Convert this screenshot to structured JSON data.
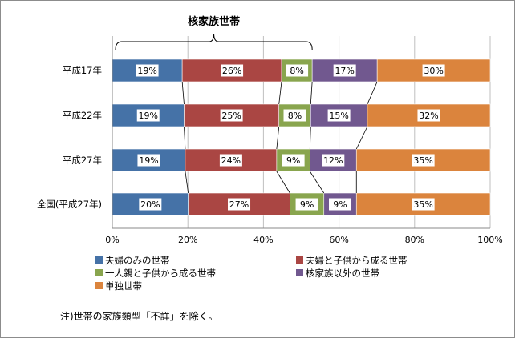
{
  "chart_data": {
    "type": "bar",
    "orientation": "horizontal",
    "stacked": true,
    "percent_stacked": true,
    "categories": [
      "平成17年",
      "平成22年",
      "平成27年",
      "全国(平成27年)"
    ],
    "series": [
      {
        "name": "夫婦のみの世帯",
        "color": "#4572a7",
        "values": [
          18.5,
          19.0,
          19.3,
          20.1
        ],
        "labels": [
          "19%",
          "19%",
          "19%",
          "20%"
        ]
      },
      {
        "name": "夫婦と子供から成る世帯",
        "color": "#aa4643",
        "values": [
          26.3,
          25.1,
          24.2,
          26.9
        ],
        "labels": [
          "26%",
          "25%",
          "24%",
          "27%"
        ]
      },
      {
        "name": "一人親と子供から成る世帯",
        "color": "#89a54e",
        "values": [
          8.1,
          8.4,
          8.8,
          9.0
        ],
        "labels": [
          "8%",
          "8%",
          "9%",
          "9%"
        ]
      },
      {
        "name": "核家族以外の世帯",
        "color": "#71588f",
        "values": [
          17.2,
          15.0,
          12.3,
          8.6
        ],
        "labels": [
          "17%",
          "15%",
          "12%",
          "9%"
        ]
      },
      {
        "name": "単独世帯",
        "color": "#db843d",
        "values": [
          29.9,
          32.5,
          35.4,
          35.4
        ],
        "labels": [
          "30%",
          "32%",
          "35%",
          "35%"
        ]
      }
    ],
    "x_ticks": [
      "0%",
      "20%",
      "40%",
      "60%",
      "80%",
      "100%"
    ],
    "xlim": [
      0,
      100
    ],
    "grid": true,
    "series_lines": true,
    "legend_position": "bottom",
    "bracket_label": "核家族世帯"
  },
  "note": "注)世帯の家族類型「不詳」を除く。"
}
